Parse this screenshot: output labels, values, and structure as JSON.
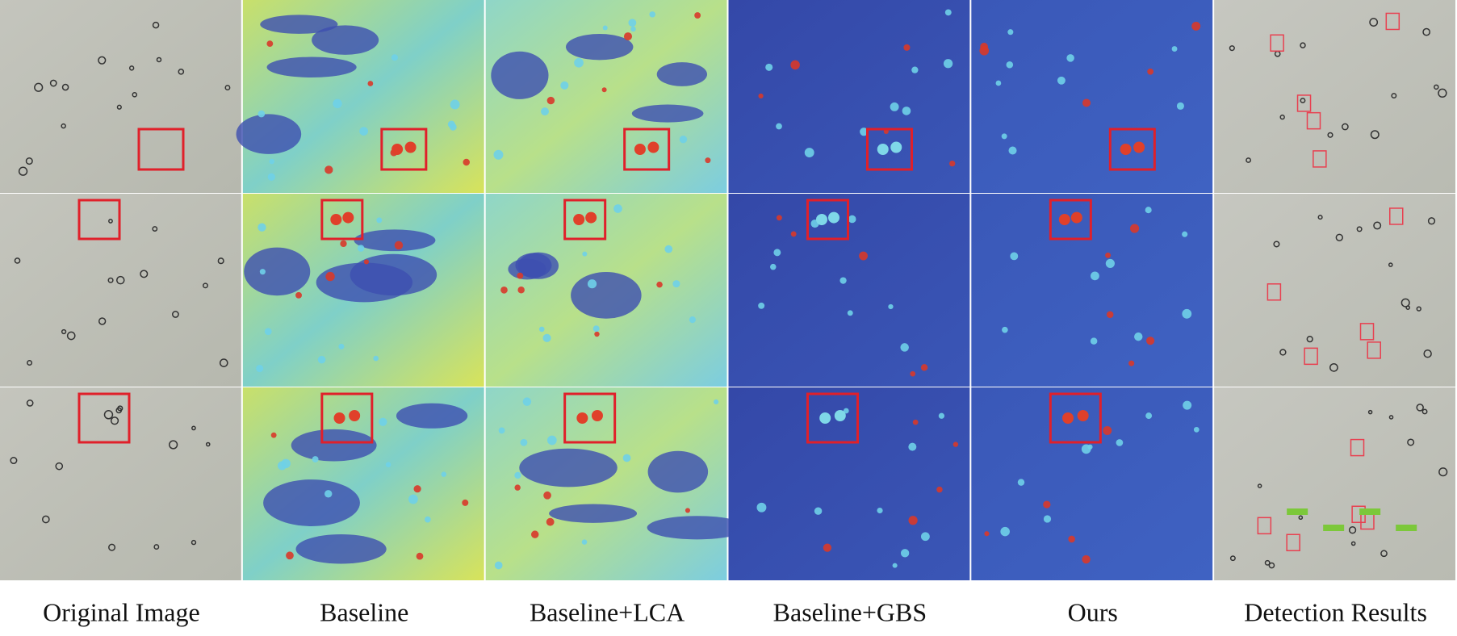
{
  "columns": [
    {
      "label": "Original Image"
    },
    {
      "label": "Baseline"
    },
    {
      "label": "Baseline+LCA"
    },
    {
      "label": "Baseline+GBS"
    },
    {
      "label": "Ours"
    },
    {
      "label": "Detection Results"
    }
  ]
}
